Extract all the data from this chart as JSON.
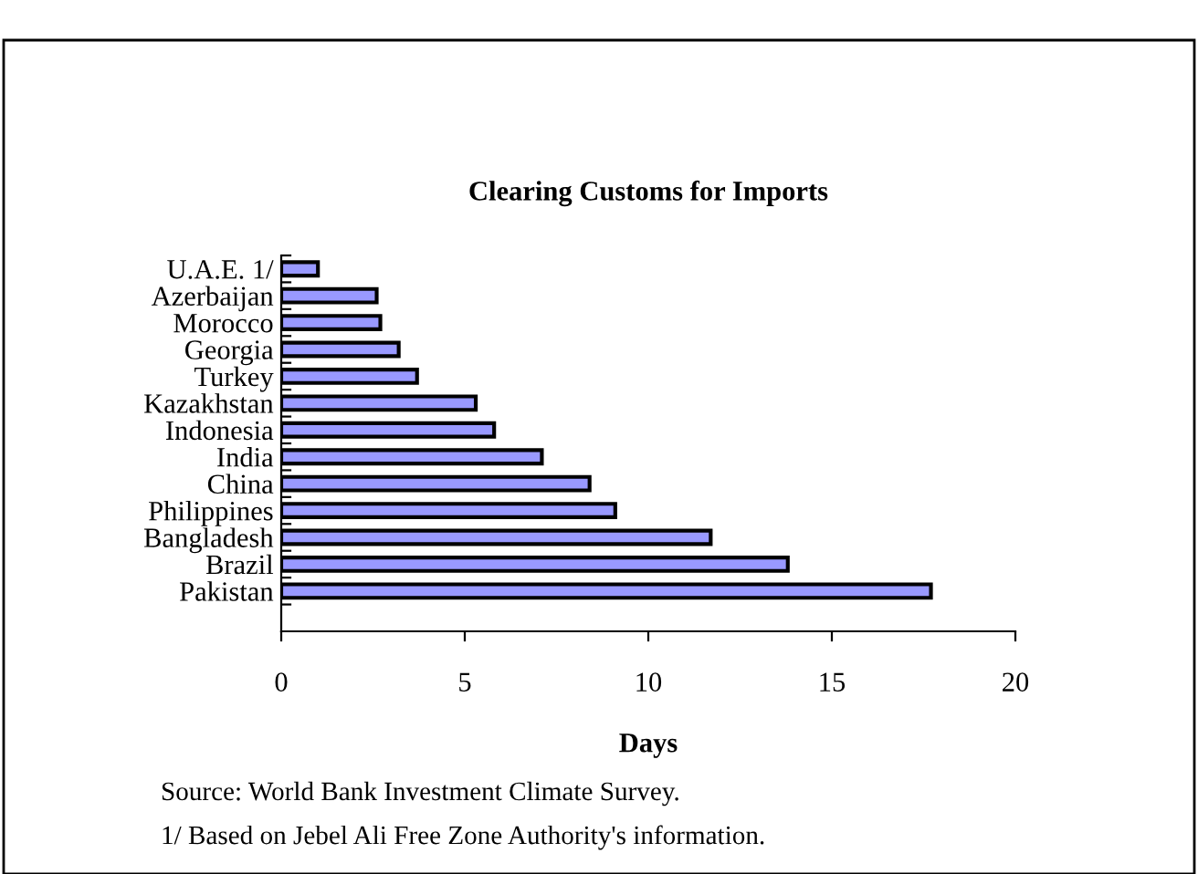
{
  "chart_data": {
    "type": "bar",
    "orientation": "horizontal",
    "title": "Clearing Customs for Imports",
    "xlabel": "Days",
    "categories": [
      "U.A.E. 1/",
      "Azerbaijan",
      "Morocco",
      "Georgia",
      "Turkey",
      "Kazakhstan",
      "Indonesia",
      "India",
      "China",
      "Philippines",
      "Bangladesh",
      "Brazil",
      "Pakistan"
    ],
    "values": [
      1.0,
      2.6,
      2.7,
      3.2,
      3.7,
      5.3,
      5.8,
      7.1,
      8.4,
      9.1,
      11.7,
      13.8,
      17.7
    ],
    "color": "#9999ff",
    "xlim": [
      0,
      20
    ],
    "xticks": [
      0,
      5,
      10,
      15,
      20
    ],
    "grid": false,
    "legend": false,
    "annotations": [
      "Source: World Bank Investment Climate Survey.",
      "1/ Based on Jebel Ali Free Zone Authority's information."
    ]
  }
}
